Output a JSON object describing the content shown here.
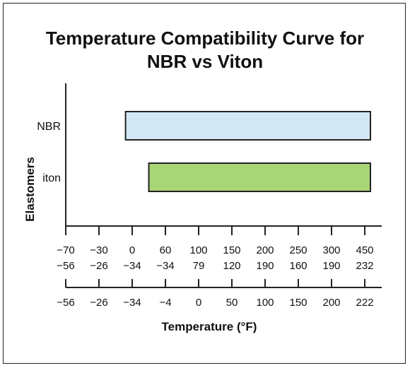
{
  "chart_data": {
    "type": "bar",
    "orientation": "horizontal",
    "title_lines": [
      "Temperature Compatibility Curve for",
      "NBR  vs  Viton"
    ],
    "ylabel": "Elastomers",
    "xlabel": "Temperature (°F)",
    "categories": [
      "NBR",
      "iton"
    ],
    "bars": [
      {
        "name": "NBR",
        "start_index": 1.8,
        "end_index": 9.0,
        "color": "#d3e8f5"
      },
      {
        "name": "iton",
        "start_index": 2.5,
        "end_index": 9.0,
        "color": "#a8d575"
      }
    ],
    "tick_rows": [
      [
        "-70",
        "-30",
        "0",
        "60",
        "100",
        "150",
        "200",
        "250",
        "300",
        "450"
      ],
      [
        "-56",
        "-26",
        "-34",
        "-34",
        "79",
        "120",
        "190",
        "160",
        "190",
        "232"
      ],
      [
        "-56",
        "-26",
        "-34",
        "-4",
        "0",
        "50",
        "100",
        "150",
        "200",
        "222"
      ]
    ],
    "grid": false,
    "legend": "none"
  }
}
